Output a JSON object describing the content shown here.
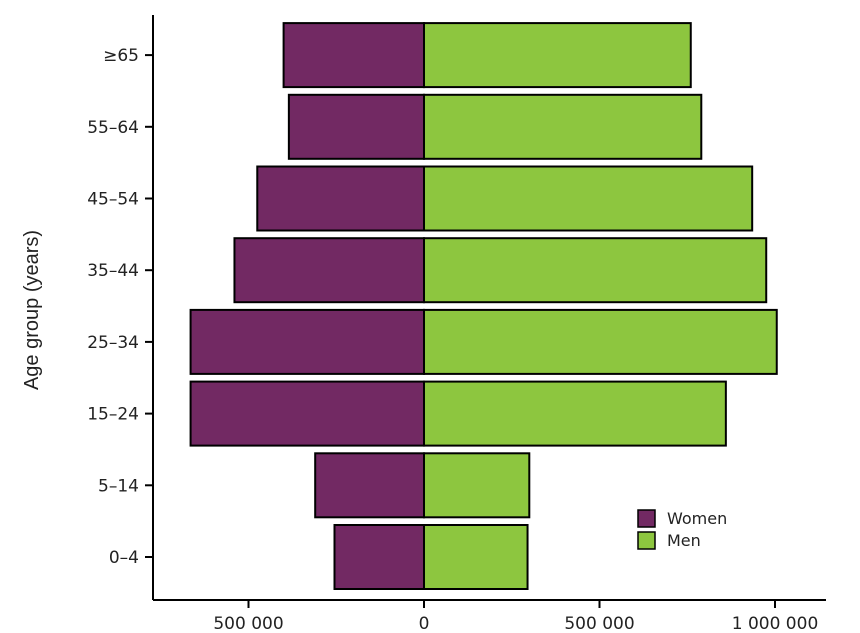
{
  "chart_data": {
    "type": "bar",
    "orientation": "horizontal-population-pyramid",
    "categories": [
      "0–4",
      "5–14",
      "15–24",
      "25–34",
      "35–44",
      "45–54",
      "55–64",
      "≥65"
    ],
    "series": [
      {
        "name": "Women",
        "color": "#722963",
        "values": [
          -255000,
          -310000,
          -665000,
          -665000,
          -540000,
          -475000,
          -385000,
          -400000
        ]
      },
      {
        "name": "Men",
        "color": "#8dc63f",
        "values": [
          295000,
          300000,
          860000,
          1005000,
          975000,
          935000,
          790000,
          760000
        ]
      }
    ],
    "ylabel": "Age group (years)",
    "xlabel": "",
    "x_ticks": [
      {
        "value": -500000,
        "label": "500 000"
      },
      {
        "value": 0,
        "label": "0"
      },
      {
        "value": 500000,
        "label": "500 000"
      },
      {
        "value": 1000000,
        "label": "1 000 000"
      }
    ],
    "xlim": [
      -750000,
      1100000
    ],
    "legend": {
      "position": "bottom-right"
    },
    "grid": false
  }
}
